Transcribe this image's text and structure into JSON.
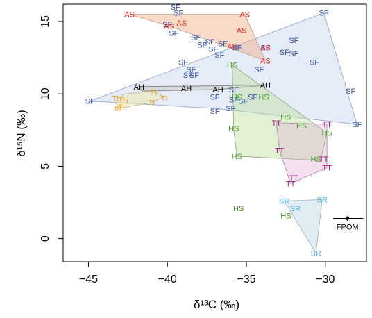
{
  "chart_data": {
    "type": "scatter",
    "xlabel": "δ¹³C (‰)",
    "ylabel": "δ¹⁵N (‰)",
    "xlim": [
      -46.6,
      -27.4
    ],
    "ylim": [
      -1.6,
      16.2
    ],
    "xticks": [
      "−45",
      "−40",
      "−35",
      "−30"
    ],
    "yticks": [
      "0",
      "5",
      "10",
      "15"
    ],
    "xtick_values": [
      -45,
      -40,
      -35,
      -30
    ],
    "ytick_values": [
      0,
      5,
      10,
      15
    ],
    "grid": false,
    "groups": [
      {
        "code": "SF",
        "text_color": "#3353a5",
        "fill": "rgba(163,183,225,0.28)",
        "stroke": "#9fb0d0",
        "hull": [
          [
            -44.9,
            9.5
          ],
          [
            -30.1,
            15.6
          ],
          [
            -28.0,
            7.9
          ],
          [
            -37.0,
            9.0
          ]
        ],
        "points": [
          [
            -44.9,
            9.5
          ],
          [
            -39.5,
            16.0
          ],
          [
            -39.3,
            15.6
          ],
          [
            -40.0,
            14.8
          ],
          [
            -39.6,
            14.2
          ],
          [
            -38.2,
            13.9
          ],
          [
            -37.8,
            13.4
          ],
          [
            -37.3,
            13.6
          ],
          [
            -36.5,
            13.5
          ],
          [
            -37.1,
            13.1
          ],
          [
            -36.7,
            12.7
          ],
          [
            -35.6,
            13.2
          ],
          [
            -33.8,
            13.2
          ],
          [
            -32.0,
            13.7
          ],
          [
            -32.6,
            12.9
          ],
          [
            -32.0,
            12.8
          ],
          [
            -30.7,
            12.2
          ],
          [
            -39.0,
            12.2
          ],
          [
            -38.5,
            11.7
          ],
          [
            -38.7,
            11.3
          ],
          [
            -38.3,
            11.3
          ],
          [
            -34.2,
            11.7
          ],
          [
            -35.8,
            10.3
          ],
          [
            -35.8,
            9.6
          ],
          [
            -35.2,
            9.5
          ],
          [
            -34.6,
            9.8
          ],
          [
            -37.0,
            9.8
          ],
          [
            -36.0,
            9.0
          ],
          [
            -37.0,
            8.8
          ],
          [
            -30.1,
            15.6
          ],
          [
            -28.4,
            10.2
          ],
          [
            -28.0,
            7.9
          ]
        ]
      },
      {
        "code": "AS",
        "text_color": "#e8251b",
        "fill": "rgba(240,168,125,0.42)",
        "stroke": "#c8ae9e",
        "hull": [
          [
            -42.4,
            15.5
          ],
          [
            -35.1,
            15.5
          ],
          [
            -33.8,
            12.3
          ],
          [
            -39.9,
            14.7
          ]
        ],
        "points": [
          [
            -42.4,
            15.5
          ],
          [
            -35.1,
            15.5
          ],
          [
            -39.1,
            14.9
          ],
          [
            -35.3,
            14.4
          ],
          [
            -39.9,
            14.7
          ],
          [
            -35.9,
            13.3
          ],
          [
            -33.8,
            13.2
          ],
          [
            -33.8,
            12.3
          ]
        ]
      },
      {
        "code": "AH",
        "text_color": "#000000",
        "fill": "rgba(200,200,200,0.5)",
        "stroke": "#888888",
        "hull": [
          [
            -41.8,
            10.5
          ],
          [
            -33.8,
            10.6
          ],
          [
            -36.8,
            10.3
          ],
          [
            -41.6,
            10.2
          ]
        ],
        "points": [
          [
            -41.8,
            10.5
          ],
          [
            -38.8,
            10.4
          ],
          [
            -36.8,
            10.3
          ],
          [
            -33.8,
            10.6
          ]
        ]
      },
      {
        "code": "TI",
        "text_color": "#f4a22a",
        "fill": "rgba(237,232,183,0.6)",
        "stroke": "#bdbd9c",
        "hull": [
          [
            -43.3,
            9.5
          ],
          [
            -42.7,
            10.0
          ],
          [
            -40.9,
            10.2
          ],
          [
            -40.2,
            9.8
          ],
          [
            -41.0,
            9.4
          ],
          [
            -43.1,
            9.0
          ]
        ],
        "points": [
          [
            -43.3,
            9.7
          ],
          [
            -42.9,
            9.6
          ],
          [
            -42.7,
            9.5
          ],
          [
            -43.2,
            9.0
          ],
          [
            -42.9,
            9.1
          ],
          [
            -40.9,
            10.1
          ],
          [
            -40.2,
            9.7
          ],
          [
            -41.0,
            9.4
          ],
          [
            -43.1,
            9.0
          ]
        ]
      },
      {
        "code": "HS",
        "text_color": "#4a9a2a",
        "fill": "rgba(190,225,160,0.45)",
        "stroke": "#9ab08a",
        "hull": [
          [
            -35.9,
            12.0
          ],
          [
            -29.9,
            7.3
          ],
          [
            -30.3,
            5.4
          ],
          [
            -35.6,
            5.7
          ],
          [
            -35.8,
            7.6
          ]
        ],
        "points": [
          [
            -35.9,
            12.0
          ],
          [
            -35.6,
            9.8
          ],
          [
            -33.9,
            9.8
          ],
          [
            -32.5,
            8.4
          ],
          [
            -35.8,
            7.6
          ],
          [
            -31.5,
            7.8
          ],
          [
            -29.9,
            7.3
          ],
          [
            -35.6,
            5.7
          ],
          [
            -30.6,
            5.5
          ],
          [
            -35.5,
            2.1
          ],
          [
            -32.5,
            1.6
          ]
        ]
      },
      {
        "code": "TT",
        "text_color": "#b2148a",
        "fill": "rgba(222,168,210,0.35)",
        "stroke": "#b593ac",
        "hull": [
          [
            -33.1,
            8.0
          ],
          [
            -29.9,
            7.9
          ],
          [
            -29.9,
            4.9
          ],
          [
            -32.2,
            3.8
          ],
          [
            -32.9,
            6.1
          ]
        ],
        "points": [
          [
            -33.1,
            8.0
          ],
          [
            -29.9,
            7.9
          ],
          [
            -32.9,
            6.1
          ],
          [
            -30.1,
            5.5
          ],
          [
            -29.9,
            4.9
          ],
          [
            -32.0,
            4.2
          ],
          [
            -32.2,
            3.8
          ]
        ]
      },
      {
        "code": "SR",
        "text_color": "#4db8e6",
        "fill": "rgba(200,222,232,0.55)",
        "stroke": "#a6bccc",
        "hull": [
          [
            -32.6,
            2.6
          ],
          [
            -30.2,
            2.7
          ],
          [
            -30.6,
            -1.0
          ]
        ],
        "points": [
          [
            -32.6,
            2.6
          ],
          [
            -31.9,
            2.1
          ],
          [
            -30.2,
            2.7
          ],
          [
            -30.6,
            -1.0
          ]
        ]
      }
    ],
    "legend": {
      "label": "FPOM",
      "position": "bottom-right",
      "x": -28.6,
      "y": 1.4,
      "x_range": [
        -29.5,
        -27.6
      ]
    }
  }
}
